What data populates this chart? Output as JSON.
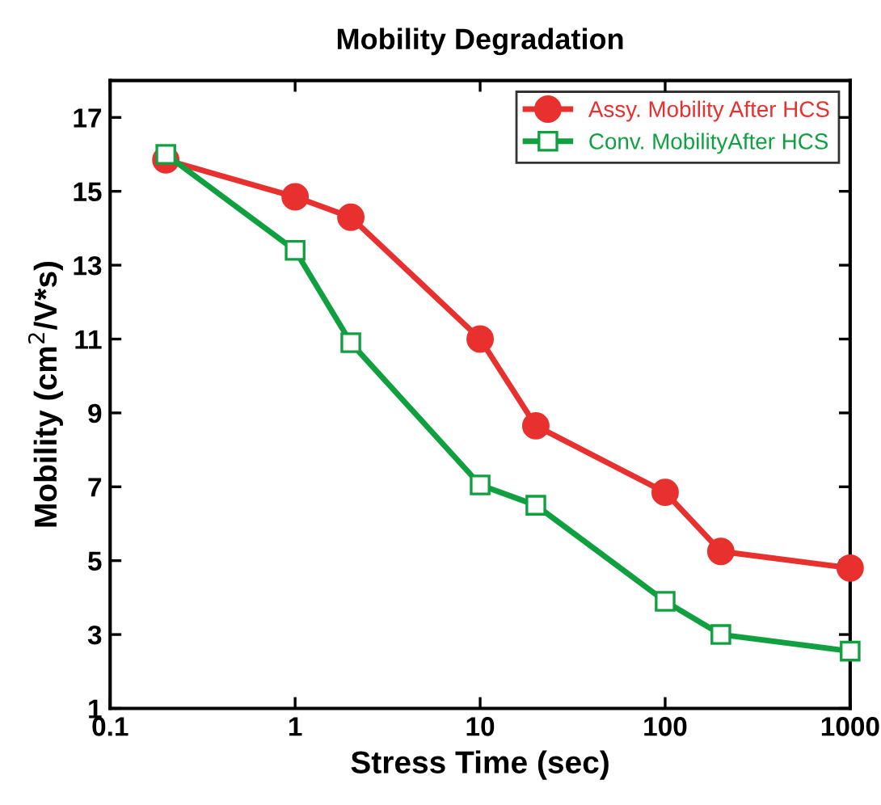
{
  "chart_data": {
    "type": "line",
    "title": "Mobility Degradation",
    "xlabel": "Stress Time (sec)",
    "ylabel": "Mobility (cm$^{2}$/V*s)",
    "log": "x",
    "xlim": [
      0.1,
      1000
    ],
    "xticks": [
      0.1,
      1,
      10,
      100,
      1000
    ],
    "ylim": [
      1,
      18
    ],
    "yticks": [
      1,
      3,
      5,
      7,
      9,
      11,
      13,
      15,
      17
    ],
    "grid": false,
    "legend": "top right",
    "series": [
      {
        "name": "Assy. Mobility After HCS",
        "color": "#e8302e",
        "marker": "circle",
        "x": [
          0.2,
          1,
          2,
          10,
          20,
          100,
          200,
          1000
        ],
        "values": [
          15.85,
          14.85,
          14.3,
          11.0,
          8.65,
          6.85,
          5.25,
          4.8
        ]
      },
      {
        "name": "Conv. MobilityAfter HCS",
        "color": "#10a040",
        "marker": "square",
        "x": [
          0.2,
          1,
          2,
          10,
          20,
          100,
          200,
          1000
        ],
        "values": [
          16.0,
          13.4,
          10.9,
          7.05,
          6.5,
          3.9,
          3.0,
          2.55
        ]
      }
    ]
  }
}
